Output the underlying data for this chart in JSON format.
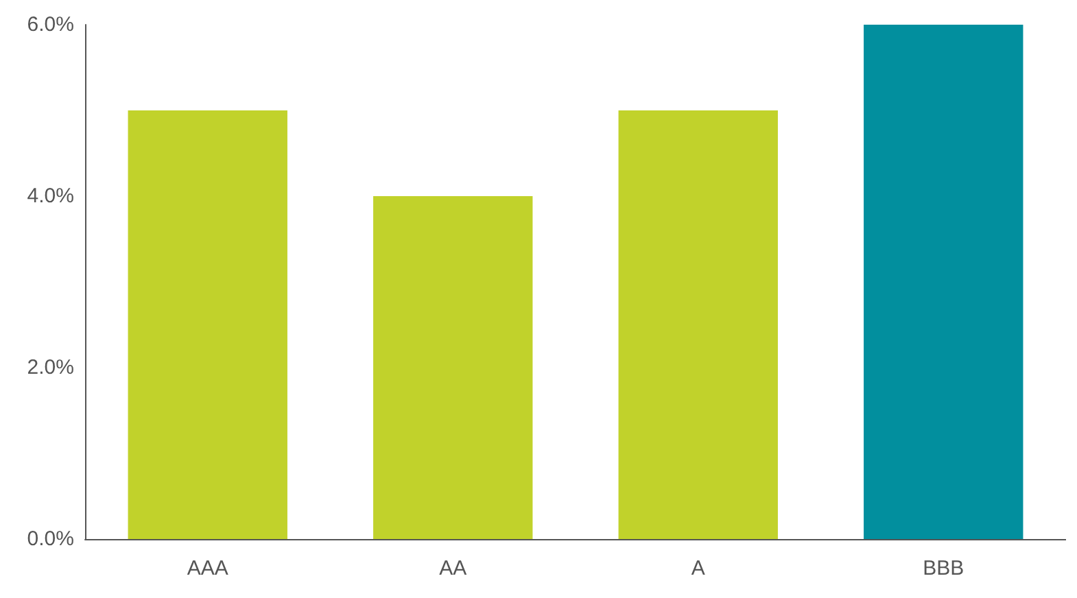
{
  "chart_data": {
    "type": "bar",
    "categories": [
      "AAA",
      "AA",
      "A",
      "BBB"
    ],
    "values": [
      5.0,
      4.0,
      5.0,
      6.0
    ],
    "colors": [
      "#c1d22b",
      "#c1d22b",
      "#c1d22b",
      "#028f9e"
    ],
    "ylim": [
      0,
      6
    ],
    "yticks": [
      {
        "value": 0,
        "label": "0.0%"
      },
      {
        "value": 2,
        "label": "2.0%"
      },
      {
        "value": 4,
        "label": "4.0%"
      },
      {
        "value": 6,
        "label": "6.0%"
      }
    ],
    "grid": false
  }
}
